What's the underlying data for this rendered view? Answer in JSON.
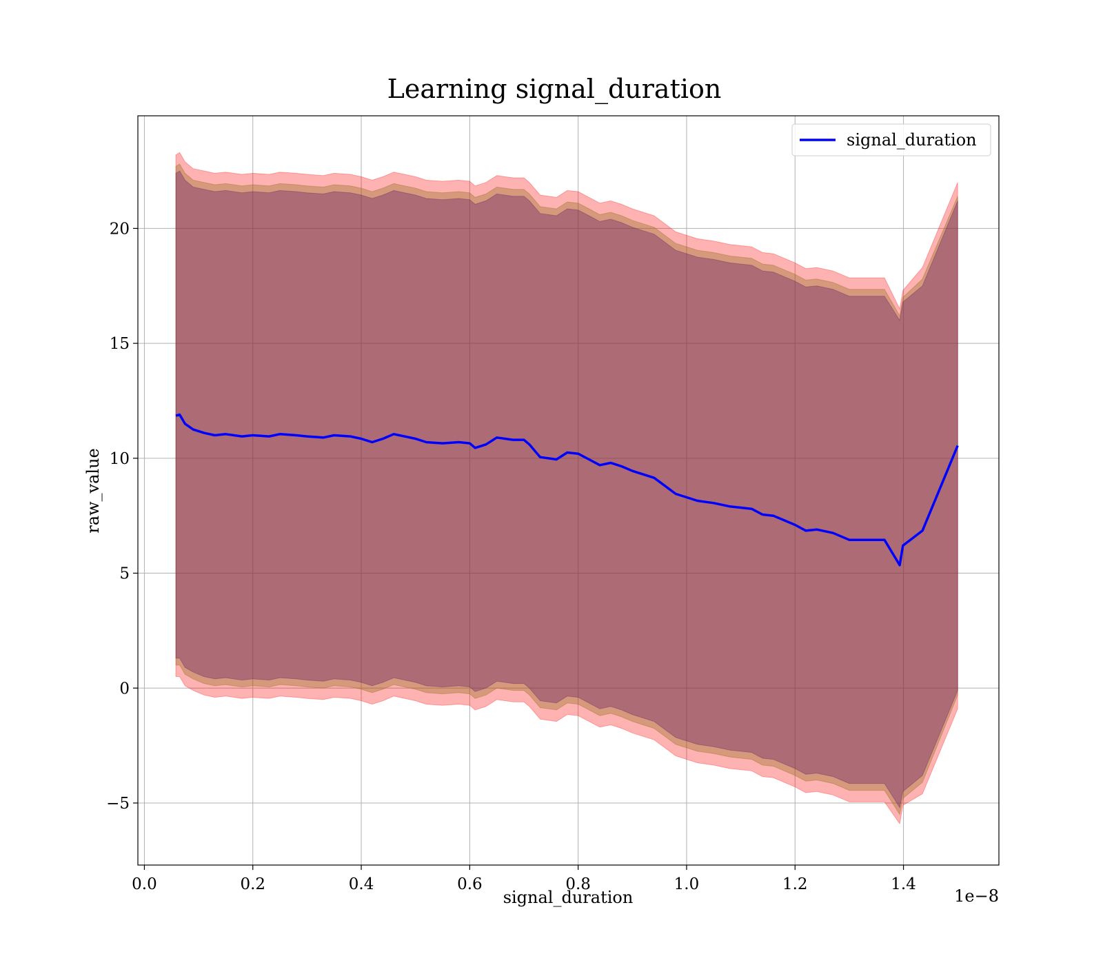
{
  "chart_data": {
    "type": "line",
    "title": "Learning signal_duration",
    "xlabel": "signal_duration",
    "ylabel": "raw_value",
    "x_offset_text": "1e−8",
    "xlim": [
      -0.012,
      1.576
    ],
    "ylim": [
      -7.7,
      24.9
    ],
    "x_ticks": [
      0.0,
      0.2,
      0.4,
      0.6,
      0.8,
      1.0,
      1.2,
      1.4
    ],
    "x_tick_labels": [
      "0.0",
      "0.2",
      "0.4",
      "0.6",
      "0.8",
      "1.0",
      "1.2",
      "1.4"
    ],
    "y_ticks": [
      -5,
      0,
      5,
      10,
      15,
      20
    ],
    "y_tick_labels": [
      "−5",
      "0",
      "5",
      "10",
      "15",
      "20"
    ],
    "grid": true,
    "legend": {
      "position": "upper-right",
      "entries": [
        "signal_duration"
      ]
    },
    "series": [
      {
        "name": "signal_duration",
        "color": "#0000ff",
        "x": [
          0.058,
          0.065,
          0.075,
          0.09,
          0.11,
          0.13,
          0.15,
          0.18,
          0.2,
          0.23,
          0.25,
          0.28,
          0.3,
          0.33,
          0.35,
          0.38,
          0.4,
          0.42,
          0.44,
          0.46,
          0.48,
          0.5,
          0.52,
          0.55,
          0.58,
          0.6,
          0.61,
          0.63,
          0.65,
          0.68,
          0.7,
          0.71,
          0.73,
          0.76,
          0.78,
          0.8,
          0.82,
          0.84,
          0.86,
          0.88,
          0.9,
          0.92,
          0.94,
          0.96,
          0.98,
          1.0,
          1.02,
          1.05,
          1.08,
          1.1,
          1.12,
          1.14,
          1.16,
          1.2,
          1.22,
          1.24,
          1.27,
          1.3,
          1.33,
          1.365,
          1.393,
          1.399,
          1.435,
          1.5
        ],
        "y": [
          11.85,
          11.9,
          11.5,
          11.25,
          11.1,
          11.0,
          11.05,
          10.95,
          11.0,
          10.95,
          11.05,
          11.0,
          10.95,
          10.9,
          11.0,
          10.95,
          10.85,
          10.7,
          10.85,
          11.05,
          10.95,
          10.85,
          10.7,
          10.65,
          10.7,
          10.65,
          10.45,
          10.6,
          10.9,
          10.8,
          10.8,
          10.6,
          10.05,
          9.95,
          10.25,
          10.2,
          9.95,
          9.7,
          9.8,
          9.65,
          9.45,
          9.3,
          9.15,
          8.8,
          8.45,
          8.3,
          8.15,
          8.05,
          7.9,
          7.85,
          7.8,
          7.55,
          7.5,
          7.1,
          6.85,
          6.9,
          6.75,
          6.45,
          6.45,
          6.45,
          5.35,
          6.2,
          6.85,
          10.55
        ]
      }
    ],
    "bands": [
      {
        "color": "#ff0000",
        "alpha": 0.3,
        "x": [
          0.058,
          0.065,
          0.075,
          0.09,
          0.11,
          0.13,
          0.15,
          0.18,
          0.2,
          0.23,
          0.25,
          0.28,
          0.3,
          0.33,
          0.35,
          0.38,
          0.4,
          0.42,
          0.44,
          0.46,
          0.48,
          0.5,
          0.52,
          0.55,
          0.58,
          0.6,
          0.61,
          0.63,
          0.65,
          0.68,
          0.7,
          0.71,
          0.73,
          0.76,
          0.78,
          0.8,
          0.82,
          0.84,
          0.86,
          0.88,
          0.9,
          0.92,
          0.94,
          0.96,
          0.98,
          1.0,
          1.02,
          1.05,
          1.08,
          1.1,
          1.12,
          1.14,
          1.16,
          1.2,
          1.22,
          1.24,
          1.27,
          1.3,
          1.33,
          1.365,
          1.393,
          1.399,
          1.435,
          1.5
        ],
        "upper": [
          23.2,
          23.3,
          22.9,
          22.6,
          22.5,
          22.4,
          22.45,
          22.35,
          22.4,
          22.35,
          22.45,
          22.4,
          22.35,
          22.3,
          22.4,
          22.35,
          22.25,
          22.1,
          22.25,
          22.45,
          22.35,
          22.25,
          22.1,
          22.05,
          22.1,
          22.05,
          21.85,
          22.0,
          22.3,
          22.2,
          22.2,
          22.0,
          21.45,
          21.35,
          21.65,
          21.6,
          21.35,
          21.1,
          21.2,
          21.05,
          20.85,
          20.7,
          20.55,
          20.2,
          19.85,
          19.7,
          19.55,
          19.45,
          19.3,
          19.25,
          19.2,
          18.95,
          18.9,
          18.5,
          18.25,
          18.3,
          18.15,
          17.85,
          17.85,
          17.85,
          16.5,
          17.3,
          18.3,
          22.0
        ],
        "lower": [
          0.5,
          0.5,
          0.1,
          -0.1,
          -0.3,
          -0.4,
          -0.35,
          -0.45,
          -0.4,
          -0.45,
          -0.35,
          -0.4,
          -0.45,
          -0.5,
          -0.4,
          -0.45,
          -0.55,
          -0.7,
          -0.55,
          -0.35,
          -0.45,
          -0.55,
          -0.7,
          -0.75,
          -0.7,
          -0.75,
          -0.95,
          -0.8,
          -0.5,
          -0.6,
          -0.6,
          -0.8,
          -1.35,
          -1.45,
          -1.15,
          -1.2,
          -1.45,
          -1.7,
          -1.6,
          -1.75,
          -1.95,
          -2.1,
          -2.25,
          -2.6,
          -2.95,
          -3.1,
          -3.25,
          -3.35,
          -3.5,
          -3.55,
          -3.6,
          -3.85,
          -3.9,
          -4.3,
          -4.55,
          -4.5,
          -4.65,
          -4.95,
          -4.95,
          -4.95,
          -5.9,
          -5.1,
          -4.6,
          -0.9
        ]
      },
      {
        "color": "#8b6914",
        "alpha": 0.35,
        "x": [
          0.058,
          0.065,
          0.075,
          0.09,
          0.11,
          0.13,
          0.15,
          0.18,
          0.2,
          0.23,
          0.25,
          0.28,
          0.3,
          0.33,
          0.35,
          0.38,
          0.4,
          0.42,
          0.44,
          0.46,
          0.48,
          0.5,
          0.52,
          0.55,
          0.58,
          0.6,
          0.61,
          0.63,
          0.65,
          0.68,
          0.7,
          0.71,
          0.73,
          0.76,
          0.78,
          0.8,
          0.82,
          0.84,
          0.86,
          0.88,
          0.9,
          0.92,
          0.94,
          0.96,
          0.98,
          1.0,
          1.02,
          1.05,
          1.08,
          1.1,
          1.12,
          1.14,
          1.16,
          1.2,
          1.22,
          1.24,
          1.27,
          1.3,
          1.33,
          1.365,
          1.393,
          1.399,
          1.435,
          1.5
        ],
        "upper": [
          22.7,
          22.8,
          22.4,
          22.1,
          22.0,
          21.9,
          21.95,
          21.85,
          21.9,
          21.85,
          21.95,
          21.9,
          21.85,
          21.8,
          21.9,
          21.85,
          21.75,
          21.6,
          21.75,
          21.95,
          21.85,
          21.75,
          21.6,
          21.55,
          21.6,
          21.55,
          21.35,
          21.5,
          21.8,
          21.7,
          21.7,
          21.5,
          20.95,
          20.85,
          21.15,
          21.1,
          20.85,
          20.6,
          20.7,
          20.55,
          20.35,
          20.2,
          20.05,
          19.7,
          19.35,
          19.2,
          19.05,
          18.95,
          18.8,
          18.75,
          18.7,
          18.45,
          18.4,
          18.0,
          17.75,
          17.8,
          17.65,
          17.35,
          17.35,
          17.35,
          16.2,
          17.0,
          17.8,
          21.4
        ],
        "lower": [
          1.0,
          1.0,
          0.6,
          0.4,
          0.2,
          0.1,
          0.15,
          0.05,
          0.1,
          0.05,
          0.15,
          0.1,
          0.05,
          0.0,
          0.1,
          0.05,
          -0.05,
          -0.2,
          -0.05,
          0.15,
          0.05,
          -0.05,
          -0.2,
          -0.25,
          -0.2,
          -0.25,
          -0.45,
          -0.3,
          0.0,
          -0.1,
          -0.1,
          -0.3,
          -0.85,
          -0.95,
          -0.65,
          -0.7,
          -0.95,
          -1.2,
          -1.1,
          -1.25,
          -1.45,
          -1.6,
          -1.75,
          -2.1,
          -2.45,
          -2.6,
          -2.75,
          -2.85,
          -3.0,
          -3.05,
          -3.1,
          -3.35,
          -3.4,
          -3.8,
          -4.05,
          -4.0,
          -4.15,
          -4.45,
          -4.45,
          -4.45,
          -5.5,
          -4.8,
          -4.1,
          -0.3
        ]
      },
      {
        "color": "#5e1a6b",
        "alpha": 0.35,
        "x": [
          0.058,
          0.065,
          0.075,
          0.09,
          0.11,
          0.13,
          0.15,
          0.18,
          0.2,
          0.23,
          0.25,
          0.28,
          0.3,
          0.33,
          0.35,
          0.38,
          0.4,
          0.42,
          0.44,
          0.46,
          0.48,
          0.5,
          0.52,
          0.55,
          0.58,
          0.6,
          0.61,
          0.63,
          0.65,
          0.68,
          0.7,
          0.71,
          0.73,
          0.76,
          0.78,
          0.8,
          0.82,
          0.84,
          0.86,
          0.88,
          0.9,
          0.92,
          0.94,
          0.96,
          0.98,
          1.0,
          1.02,
          1.05,
          1.08,
          1.1,
          1.12,
          1.14,
          1.16,
          1.2,
          1.22,
          1.24,
          1.27,
          1.3,
          1.33,
          1.365,
          1.393,
          1.399,
          1.435,
          1.5
        ],
        "upper": [
          22.4,
          22.5,
          22.1,
          21.8,
          21.7,
          21.6,
          21.65,
          21.55,
          21.6,
          21.55,
          21.65,
          21.6,
          21.55,
          21.5,
          21.6,
          21.55,
          21.45,
          21.3,
          21.45,
          21.65,
          21.55,
          21.45,
          21.3,
          21.25,
          21.3,
          21.25,
          21.05,
          21.2,
          21.5,
          21.4,
          21.4,
          21.2,
          20.65,
          20.55,
          20.85,
          20.8,
          20.55,
          20.3,
          20.4,
          20.25,
          20.05,
          19.9,
          19.75,
          19.4,
          19.05,
          18.9,
          18.75,
          18.65,
          18.5,
          18.45,
          18.4,
          18.15,
          18.1,
          17.7,
          17.45,
          17.5,
          17.35,
          17.05,
          17.05,
          17.05,
          16.0,
          16.8,
          17.5,
          21.2
        ],
        "lower": [
          1.3,
          1.3,
          0.9,
          0.7,
          0.5,
          0.4,
          0.45,
          0.35,
          0.4,
          0.35,
          0.45,
          0.4,
          0.35,
          0.3,
          0.4,
          0.35,
          0.25,
          0.1,
          0.25,
          0.45,
          0.35,
          0.25,
          0.1,
          0.05,
          0.1,
          0.05,
          -0.15,
          0.0,
          0.3,
          0.2,
          0.2,
          0.0,
          -0.55,
          -0.65,
          -0.35,
          -0.4,
          -0.65,
          -0.9,
          -0.8,
          -0.95,
          -1.15,
          -1.3,
          -1.45,
          -1.8,
          -2.15,
          -2.3,
          -2.45,
          -2.55,
          -2.7,
          -2.75,
          -2.8,
          -3.05,
          -3.1,
          -3.5,
          -3.75,
          -3.7,
          -3.85,
          -4.15,
          -4.15,
          -4.15,
          -5.2,
          -4.5,
          -3.8,
          -0.1
        ]
      }
    ]
  }
}
